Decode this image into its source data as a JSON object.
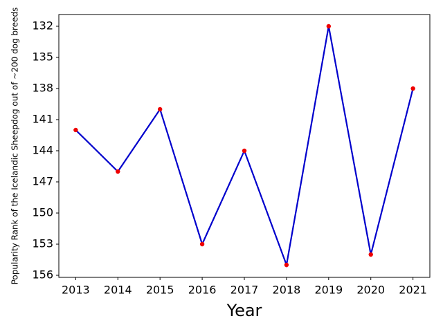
{
  "chart_data": {
    "type": "line",
    "x_label": "Year",
    "y_label": "Popularity Rank of the Icelandic Sheepdog out of ~200 dog breeds",
    "x": [
      2013,
      2014,
      2015,
      2016,
      2017,
      2018,
      2019,
      2020,
      2021
    ],
    "series": [
      {
        "name": "Rank",
        "line_color": "#0000cc",
        "marker_color": "#ee0000",
        "values": [
          142,
          146,
          140,
          153,
          144,
          155,
          132,
          154,
          138
        ]
      }
    ],
    "xlim": [
      2012.6,
      2021.4
    ],
    "xticks": [
      2013,
      2014,
      2015,
      2016,
      2017,
      2018,
      2019,
      2020,
      2021
    ],
    "ylim": [
      156.2,
      130.87
    ],
    "yticks": [
      132,
      135,
      138,
      141,
      144,
      147,
      150,
      153,
      156
    ]
  }
}
